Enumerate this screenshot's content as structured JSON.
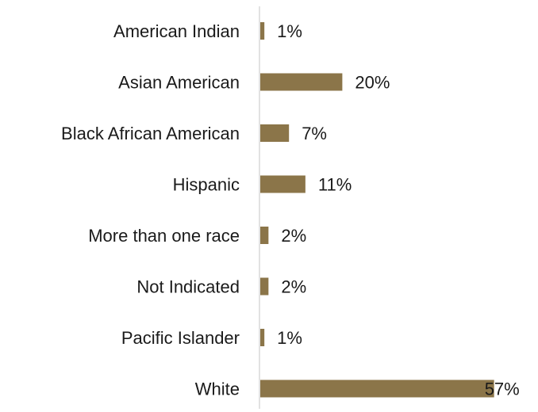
{
  "chart_data": {
    "type": "bar",
    "orientation": "horizontal",
    "categories": [
      "American Indian",
      "Asian American",
      "Black African American",
      "Hispanic",
      "More than one race",
      "Not Indicated",
      "Pacific Islander",
      "White"
    ],
    "values": [
      1,
      20,
      7,
      11,
      2,
      2,
      1,
      57
    ],
    "value_labels": [
      "1%",
      "20%",
      "7%",
      "11%",
      "2%",
      "2%",
      "1%",
      "57%"
    ],
    "unit": "%",
    "bar_color": "#8b7549",
    "axis_color": "#d9d9d9",
    "grid": false,
    "legend": "none"
  }
}
